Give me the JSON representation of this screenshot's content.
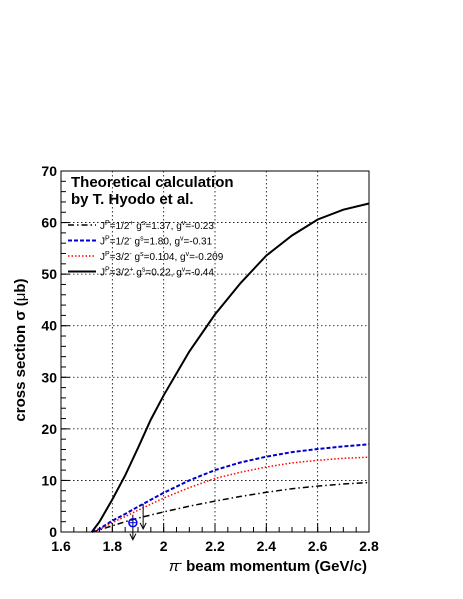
{
  "chart_data": {
    "type": "line",
    "title": "",
    "annotation_lines": [
      "Theoretical calculation",
      "by T. Hyodo et al."
    ],
    "xlabel_parts": {
      "pre": "π",
      "sup": "-",
      "post": " beam momentum (GeV/c)"
    },
    "ylabel_parts": {
      "pre": "cross section σ (",
      "mu": "μ",
      "post": "b)"
    },
    "xlim": [
      1.6,
      2.8
    ],
    "ylim": [
      0,
      70
    ],
    "xticks": [
      1.6,
      1.8,
      2,
      2.2,
      2.4,
      2.6,
      2.8
    ],
    "xtick_labels": [
      "1.6",
      "1.8",
      "2",
      "2.2",
      "2.4",
      "2.6",
      "2.8"
    ],
    "yticks": [
      0,
      10,
      20,
      30,
      40,
      50,
      60,
      70
    ],
    "ytick_labels": [
      "0",
      "10",
      "20",
      "30",
      "40",
      "50",
      "60",
      "70"
    ],
    "grid": true,
    "legend_placement": "top-left",
    "series": [
      {
        "name": "J^P=1/2^+ g^s=1.37, g^v=-0.23",
        "legend": {
          "a": "J",
          "b": "P",
          "c": "=1/2",
          "d": "+",
          "e": " g",
          "f": "s",
          "g": "=1.37, g",
          "h": "v",
          "i": "=-0.23"
        },
        "color": "#000000",
        "dash": "6,3,1.5,3",
        "width": 1.5,
        "x": [
          1.72,
          1.75,
          1.8,
          1.85,
          1.9,
          2.0,
          2.1,
          2.2,
          2.3,
          2.4,
          2.5,
          2.6,
          2.7,
          2.8
        ],
        "y": [
          0,
          0.4,
          1.2,
          2.0,
          2.7,
          3.9,
          5.0,
          6.0,
          6.9,
          7.7,
          8.4,
          8.9,
          9.3,
          9.6
        ]
      },
      {
        "name": "J^P=1/2^- g^s=1.80, g^v=-0.31",
        "legend": {
          "a": "J",
          "b": "P",
          "c": "=1/2",
          "d": "-",
          "e": " g",
          "f": "s",
          "g": "=1.80, g",
          "h": "v",
          "i": "=-0.31"
        },
        "color": "#0000cc",
        "dash": "4,2",
        "width": 2,
        "x": [
          1.72,
          1.75,
          1.8,
          1.85,
          1.9,
          2.0,
          2.1,
          2.2,
          2.3,
          2.4,
          2.5,
          2.6,
          2.7,
          2.8
        ],
        "y": [
          0,
          0.6,
          2.2,
          3.5,
          4.9,
          7.6,
          10.0,
          12.0,
          13.5,
          14.6,
          15.5,
          16.1,
          16.6,
          17.0
        ]
      },
      {
        "name": "J^P=3/2^- g^s=0.104, g^v=-0.209",
        "legend": {
          "a": "J",
          "b": "P",
          "c": "=3/2",
          "d": "-",
          "e": " g",
          "f": "s",
          "g": "=0.104, g",
          "h": "v",
          "i": "=-0.209"
        },
        "color": "#ff0000",
        "dash": "1.5,2",
        "width": 1.5,
        "x": [
          1.72,
          1.75,
          1.8,
          1.85,
          1.9,
          2.0,
          2.1,
          2.2,
          2.3,
          2.4,
          2.5,
          2.6,
          2.7,
          2.8
        ],
        "y": [
          0,
          0.5,
          1.8,
          3.0,
          4.2,
          6.6,
          8.6,
          10.4,
          11.6,
          12.6,
          13.4,
          13.9,
          14.3,
          14.5
        ]
      },
      {
        "name": "J^P=3/2^+ g^s=0.22, g^v=-0.44",
        "legend": {
          "a": "J",
          "b": "P",
          "c": "=3/2",
          "d": "+",
          "e": " g",
          "f": "s",
          "g": "=0.22,  g",
          "h": "v",
          "i": "=-0.44"
        },
        "color": "#000000",
        "dash": "",
        "width": 2,
        "x": [
          1.72,
          1.75,
          1.8,
          1.85,
          1.9,
          1.95,
          2.0,
          2.1,
          2.2,
          2.3,
          2.4,
          2.5,
          2.6,
          2.7,
          2.8
        ],
        "y": [
          0,
          2.0,
          6.3,
          11.0,
          16.3,
          21.8,
          26.5,
          35.0,
          42.2,
          48.3,
          53.6,
          57.5,
          60.6,
          62.5,
          63.7
        ]
      }
    ],
    "data_points": [
      {
        "x": 1.88,
        "y": 1.8,
        "style": "blue-open-circle",
        "color": "#0000ff"
      }
    ],
    "upper_limits": [
      {
        "x": 1.88,
        "y": 1.8,
        "color": "#000000"
      },
      {
        "x": 1.92,
        "y": 3.9,
        "color": "#000000"
      }
    ]
  }
}
